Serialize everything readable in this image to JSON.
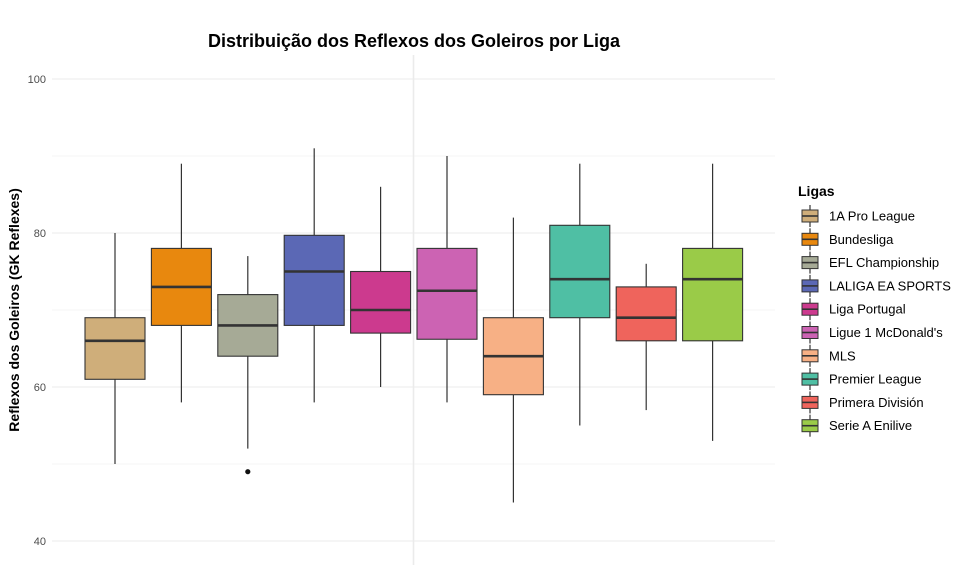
{
  "chart_data": {
    "type": "boxplot",
    "title": "Distribuição dos Reflexos dos Goleiros por Liga",
    "xlabel": "",
    "ylabel": "Reflexos dos Goleiros (GK Reflexes)",
    "ylim": [
      37,
      106
    ],
    "yticks": [
      40,
      60,
      80,
      100
    ],
    "grid": true,
    "legend": {
      "title": "Ligas",
      "position": "right"
    },
    "series": [
      {
        "name": "1A Pro League",
        "color": "#CFAE7A",
        "whisker_low": 50,
        "q1": 61,
        "median": 66,
        "q3": 69,
        "whisker_high": 80,
        "outliers": []
      },
      {
        "name": "Bundesliga",
        "color": "#E8880E",
        "whisker_low": 58,
        "q1": 68,
        "median": 73,
        "q3": 78,
        "whisker_high": 89,
        "outliers": []
      },
      {
        "name": "EFL Championship",
        "color": "#A6AA96",
        "whisker_low": 52,
        "q1": 64,
        "median": 68,
        "q3": 72,
        "whisker_high": 77,
        "outliers": [
          49
        ]
      },
      {
        "name": "LALIGA EA SPORTS",
        "color": "#5B68B5",
        "whisker_low": 58,
        "q1": 68,
        "median": 75,
        "q3": 79.7,
        "whisker_high": 91,
        "outliers": []
      },
      {
        "name": "Liga Portugal",
        "color": "#CC3A8E",
        "whisker_low": 60,
        "q1": 67,
        "median": 70,
        "q3": 75,
        "whisker_high": 86,
        "outliers": []
      },
      {
        "name": "Ligue 1 McDonald's",
        "color": "#CC63B3",
        "whisker_low": 58,
        "q1": 66.2,
        "median": 72.5,
        "q3": 78,
        "whisker_high": 90,
        "outliers": []
      },
      {
        "name": "MLS",
        "color": "#F7B085",
        "whisker_low": 45,
        "q1": 59,
        "median": 64,
        "q3": 69,
        "whisker_high": 82,
        "outliers": []
      },
      {
        "name": "Premier League",
        "color": "#4FBFA4",
        "whisker_low": 55,
        "q1": 69,
        "median": 74,
        "q3": 81,
        "whisker_high": 89,
        "outliers": []
      },
      {
        "name": "Primera División",
        "color": "#EF645C",
        "whisker_low": 57,
        "q1": 66,
        "median": 69,
        "q3": 73,
        "whisker_high": 76,
        "outliers": []
      },
      {
        "name": "Serie A Enilive",
        "color": "#9ACB48",
        "whisker_low": 53,
        "q1": 66,
        "median": 74,
        "q3": 78,
        "whisker_high": 89,
        "outliers": []
      }
    ]
  }
}
